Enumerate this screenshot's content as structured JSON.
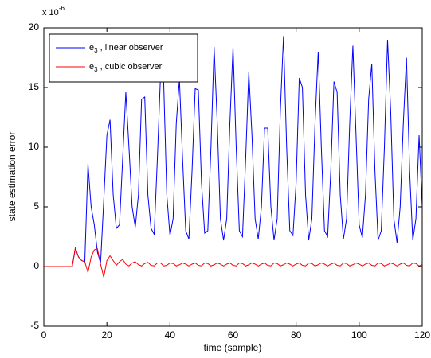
{
  "chart_data": {
    "type": "line",
    "xlabel": "time (sample)",
    "ylabel": "state estimation error",
    "y_multiplier": {
      "base": "x 10",
      "exponent": "-6"
    },
    "xlim": [
      0,
      120
    ],
    "xticks": [
      0,
      20,
      40,
      60,
      80,
      100,
      120
    ],
    "ylim": [
      -5,
      20
    ],
    "yticks": [
      -5,
      0,
      5,
      10,
      15,
      20
    ],
    "legend": "upper left",
    "x": [
      0,
      1,
      2,
      3,
      4,
      5,
      6,
      7,
      8,
      9,
      10,
      11,
      12,
      13,
      14,
      15,
      16,
      17,
      18,
      19,
      20,
      21,
      22,
      23,
      24,
      25,
      26,
      27,
      28,
      29,
      30,
      31,
      32,
      33,
      34,
      35,
      36,
      37,
      38,
      39,
      40,
      41,
      42,
      43,
      44,
      45,
      46,
      47,
      48,
      49,
      50,
      51,
      52,
      53,
      54,
      55,
      56,
      57,
      58,
      59,
      60,
      61,
      62,
      63,
      64,
      65,
      66,
      67,
      68,
      69,
      70,
      71,
      72,
      73,
      74,
      75,
      76,
      77,
      78,
      79,
      80,
      81,
      82,
      83,
      84,
      85,
      86,
      87,
      88,
      89,
      90,
      91,
      92,
      93,
      94,
      95,
      96,
      97,
      98,
      99,
      100,
      101,
      102,
      103,
      104,
      105,
      106,
      107,
      108,
      109,
      110,
      111,
      112,
      113,
      114,
      115,
      116,
      117,
      118,
      119,
      120
    ],
    "series": [
      {
        "name": {
          "base": "e",
          "sub": "3",
          "text": " , linear observer"
        },
        "color": "#0000ff",
        "values": [
          0,
          0,
          0,
          0,
          0,
          0,
          0,
          0,
          0,
          0,
          1.5,
          0.8,
          0.5,
          0.4,
          8.6,
          5,
          3.5,
          1.2,
          0.3,
          5.5,
          11,
          12.3,
          6,
          3.2,
          3.5,
          9,
          14.6,
          10,
          5,
          3.3,
          6,
          14,
          14.2,
          6,
          3.2,
          2.7,
          9,
          16,
          15.5,
          6,
          2.6,
          4,
          12,
          15.7,
          9,
          3,
          2.3,
          8,
          14.9,
          14.8,
          7,
          2.8,
          3,
          10,
          18.4,
          12,
          4,
          2.2,
          4,
          12,
          18.4,
          10,
          3,
          2.5,
          9,
          16.3,
          11,
          4,
          2.3,
          5,
          11.6,
          11.6,
          5,
          2.2,
          4,
          13,
          19.3,
          10,
          3,
          2.6,
          7,
          15.8,
          15,
          6,
          2.2,
          4,
          12,
          18,
          10,
          3,
          2.5,
          8,
          15.5,
          14.6,
          6,
          2.3,
          4,
          12,
          18.5,
          11,
          3.5,
          2.4,
          6,
          14,
          17,
          8,
          2.2,
          3,
          10,
          19,
          13,
          4,
          2,
          5,
          12,
          17.5,
          8,
          2.2,
          4,
          11,
          5
        ]
      },
      {
        "name": {
          "base": "e",
          "sub": "3",
          "text": " , cubic observer"
        },
        "color": "#ff0000",
        "values": [
          0,
          0,
          0,
          0,
          0,
          0,
          0,
          0,
          0,
          0,
          1.6,
          0.8,
          0.5,
          0.4,
          -0.5,
          0.8,
          1.4,
          1.5,
          0.2,
          -0.9,
          0.5,
          0.9,
          0.5,
          0.1,
          0.4,
          0.6,
          0.2,
          0.05,
          0.3,
          0.4,
          0.15,
          0.05,
          0.25,
          0.35,
          0.1,
          0.05,
          0.3,
          0.3,
          0.05,
          0.1,
          0.3,
          0.25,
          0.05,
          0.15,
          0.3,
          0.2,
          0.05,
          0.2,
          0.3,
          0.1,
          0.05,
          0.3,
          0.25,
          0.05,
          0.15,
          0.3,
          0.2,
          0.05,
          0.2,
          0.3,
          0.1,
          0.05,
          0.3,
          0.25,
          0.05,
          0.15,
          0.3,
          0.2,
          0.05,
          0.2,
          0.3,
          0.1,
          0.05,
          0.3,
          0.25,
          0.05,
          0.15,
          0.3,
          0.2,
          0.05,
          0.2,
          0.3,
          0.1,
          0.05,
          0.3,
          0.25,
          0.05,
          0.15,
          0.3,
          0.2,
          0.05,
          0.2,
          0.3,
          0.1,
          0.05,
          0.3,
          0.25,
          0.05,
          0.15,
          0.3,
          0.2,
          0.05,
          0.2,
          0.3,
          0.1,
          0.05,
          0.3,
          0.25,
          0.05,
          0.15,
          0.3,
          0.2,
          0.05,
          0.2,
          0.3,
          0.1,
          0.05,
          0.3,
          0.25,
          0.05,
          0.15
        ]
      }
    ]
  }
}
